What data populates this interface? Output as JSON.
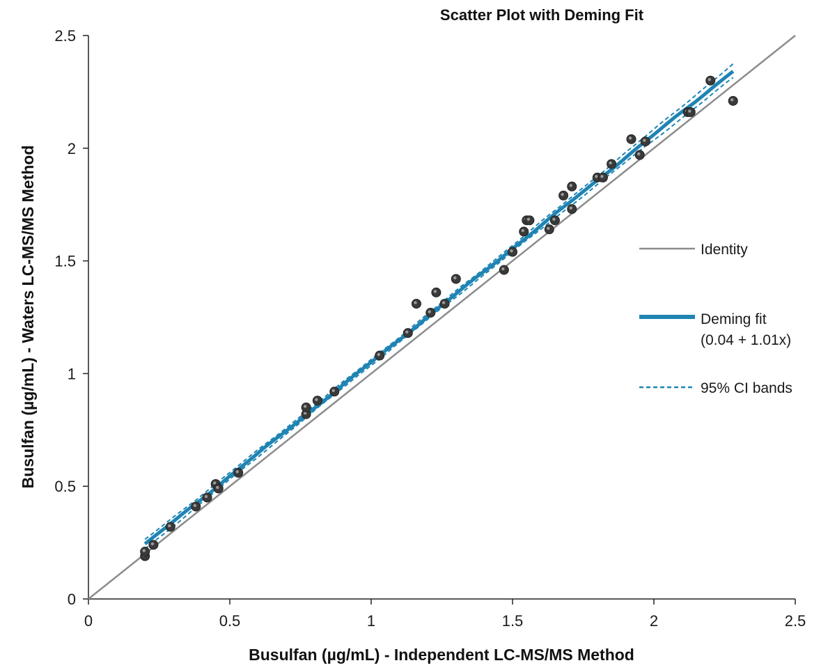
{
  "chart_data": {
    "type": "scatter",
    "title": "Scatter Plot with Deming Fit",
    "xlabel": "Busulfan (µg/mL) - Independent LC-MS/MS Method",
    "ylabel": "Busulfan (µg/mL) - Waters LC-MS/MS Method",
    "xlim": [
      0,
      2.5
    ],
    "ylim": [
      0,
      2.5
    ],
    "xticks": [
      0,
      0.5,
      1,
      1.5,
      2,
      2.5
    ],
    "yticks": [
      0,
      0.5,
      1,
      1.5,
      2,
      2.5
    ],
    "xtick_labels": [
      "0",
      "0.5",
      "1",
      "1.5",
      "2",
      "2.5"
    ],
    "ytick_labels": [
      "0",
      "0.5",
      "1",
      "1.5",
      "2",
      "2.5"
    ],
    "grid": false,
    "legend_position": "right",
    "colors": {
      "identity": "#8c8c8c",
      "deming": "#1f84b3",
      "ci": "#1f84b3",
      "points": "#3a3a3a"
    },
    "series": [
      {
        "name": "Identity",
        "kind": "line",
        "x": [
          0,
          2.5
        ],
        "y": [
          0,
          2.5
        ]
      },
      {
        "name": "Deming fit",
        "name_line2": "(0.04 + 1.01x)",
        "kind": "line",
        "intercept": 0.04,
        "slope": 1.01,
        "x": [
          0.2,
          2.28
        ]
      },
      {
        "name": "95% CI bands",
        "kind": "dashed-band",
        "x": [
          0.2,
          2.28
        ]
      },
      {
        "name": "Data",
        "kind": "points",
        "points": [
          [
            0.2,
            0.19
          ],
          [
            0.2,
            0.21
          ],
          [
            0.23,
            0.24
          ],
          [
            0.29,
            0.32
          ],
          [
            0.38,
            0.41
          ],
          [
            0.42,
            0.45
          ],
          [
            0.45,
            0.51
          ],
          [
            0.46,
            0.49
          ],
          [
            0.53,
            0.56
          ],
          [
            0.77,
            0.82
          ],
          [
            0.77,
            0.85
          ],
          [
            0.81,
            0.88
          ],
          [
            0.87,
            0.92
          ],
          [
            1.03,
            1.08
          ],
          [
            1.13,
            1.18
          ],
          [
            1.16,
            1.31
          ],
          [
            1.21,
            1.27
          ],
          [
            1.23,
            1.36
          ],
          [
            1.26,
            1.31
          ],
          [
            1.3,
            1.42
          ],
          [
            1.47,
            1.46
          ],
          [
            1.5,
            1.54
          ],
          [
            1.54,
            1.63
          ],
          [
            1.55,
            1.68
          ],
          [
            1.56,
            1.68
          ],
          [
            1.63,
            1.64
          ],
          [
            1.65,
            1.68
          ],
          [
            1.68,
            1.79
          ],
          [
            1.71,
            1.83
          ],
          [
            1.71,
            1.73
          ],
          [
            1.8,
            1.87
          ],
          [
            1.82,
            1.87
          ],
          [
            1.85,
            1.93
          ],
          [
            1.92,
            2.04
          ],
          [
            1.95,
            1.97
          ],
          [
            1.97,
            2.03
          ],
          [
            2.12,
            2.16
          ],
          [
            2.13,
            2.16
          ],
          [
            2.2,
            2.3
          ],
          [
            2.28,
            2.21
          ]
        ]
      }
    ]
  }
}
